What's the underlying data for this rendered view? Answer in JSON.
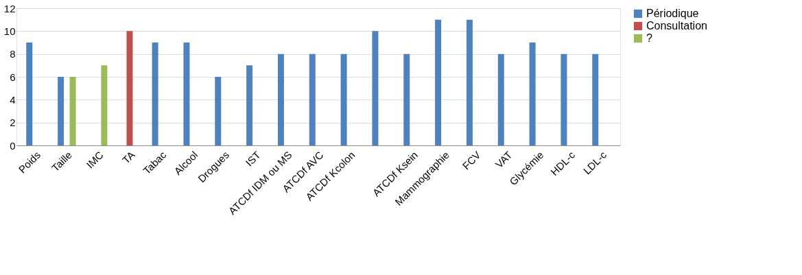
{
  "chart_data": {
    "type": "bar",
    "categories": [
      "Poids",
      "Taille",
      "IMC",
      "TA",
      "Tabac",
      "Alcool",
      "Drogues",
      "IST",
      "ATCDf IDM ou MS",
      "ATCDf AVC",
      "ATCDf Kcolon",
      null,
      "ATCDf Ksein",
      "Mammographie",
      "FCV",
      "VAT",
      "Glycémie",
      "HDL-c",
      "LDL-c"
    ],
    "series": [
      {
        "name": "Périodique",
        "color": "#4f81bd",
        "values": [
          9,
          6,
          null,
          null,
          9,
          9,
          6,
          7,
          8,
          8,
          8,
          10,
          8,
          11,
          11,
          8,
          9,
          8,
          8
        ]
      },
      {
        "name": "Consultation",
        "color": "#c0504d",
        "values": [
          null,
          null,
          null,
          10,
          null,
          null,
          null,
          null,
          null,
          null,
          null,
          null,
          null,
          null,
          null,
          null,
          null,
          null,
          null
        ]
      },
      {
        "name": "?",
        "color": "#9bbb59",
        "values": [
          null,
          6,
          7,
          null,
          null,
          null,
          null,
          null,
          null,
          null,
          null,
          null,
          null,
          null,
          null,
          null,
          null,
          null,
          null
        ]
      }
    ],
    "ylim": [
      0,
      12
    ],
    "yticks": [
      0,
      2,
      4,
      6,
      8,
      10,
      12
    ],
    "grid": "y",
    "legend": "right"
  }
}
